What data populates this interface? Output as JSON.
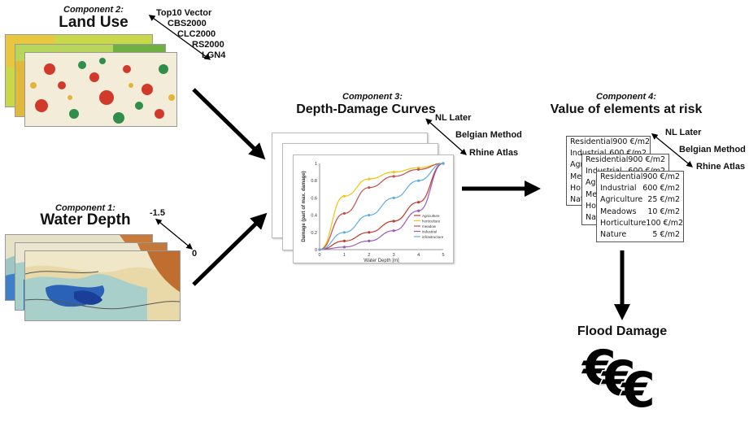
{
  "land_use": {
    "component_label": "Component 2:",
    "title": "Land Use",
    "sources": [
      "Top10 Vector",
      "CBS2000",
      "CLC2000",
      "RS2000",
      "LGN4"
    ]
  },
  "water_depth": {
    "component_label": "Component 1:",
    "title": "Water Depth",
    "range_top": "-1.5",
    "range_bottom": "0"
  },
  "depth_damage": {
    "component_label": "Component 3:",
    "title": "Depth-Damage Curves",
    "sources": [
      "NL Later",
      "Belgian Method",
      "Rhine Atlas"
    ]
  },
  "value_elements": {
    "component_label": "Component 4:",
    "title": "Value of elements at risk",
    "sources": [
      "NL Later",
      "Belgian Method",
      "Rhine Atlas"
    ],
    "rows": [
      {
        "label": "Residential",
        "value": "900 €/m2"
      },
      {
        "label": "Industrial",
        "value": "600 €/m2"
      },
      {
        "label": "Agriculture",
        "value": "25 €/m2"
      },
      {
        "label": "Meadows",
        "value": "10 €/m2"
      },
      {
        "label": "Horticulture",
        "value": "100 €/m2"
      },
      {
        "label": "Nature",
        "value": "5 €/m2"
      }
    ],
    "back_rows_1": [
      {
        "label": "Residential",
        "value": "900 €/m2"
      },
      {
        "label": "Industrial",
        "value": "600 €/m2"
      },
      {
        "label": "Agri",
        "value": ""
      },
      {
        "label": "Mea",
        "value": ""
      },
      {
        "label": "Hor",
        "value": ""
      },
      {
        "label": "Natu",
        "value": ""
      }
    ],
    "back_rows_2": [
      {
        "label": "Residential",
        "value": "900 €/m2"
      },
      {
        "label": "Industrial",
        "value": "600 €/m2"
      },
      {
        "label": "Agri",
        "value": ""
      },
      {
        "label": "Mea",
        "value": ""
      },
      {
        "label": "Hor",
        "value": ""
      },
      {
        "label": "Natu",
        "value": ""
      }
    ]
  },
  "flood_damage": {
    "title": "Flood Damage",
    "symbol": "€"
  },
  "chart_data": {
    "type": "line",
    "xlabel": "Water Depth [m]",
    "ylabel": "Damage (part of max. damage)",
    "xlim": [
      0,
      5
    ],
    "ylim": [
      0,
      1
    ],
    "xticks": [
      "0",
      "1",
      "2",
      "3",
      "4",
      "5"
    ],
    "yticks": [
      "0",
      "0.2",
      "0.4",
      "0.6",
      "0.8",
      "1"
    ],
    "x": [
      0,
      1,
      2,
      3,
      4,
      5
    ],
    "series": [
      {
        "name": "Agriculture",
        "color": "#c0392b",
        "values": [
          0,
          0.1,
          0.2,
          0.33,
          0.55,
          1.0
        ]
      },
      {
        "name": "horticulture",
        "color": "#f1c40f",
        "values": [
          0,
          0.62,
          0.82,
          0.9,
          0.95,
          1.0
        ]
      },
      {
        "name": "meadow",
        "color": "#c0504d",
        "values": [
          0,
          0.42,
          0.72,
          0.85,
          0.93,
          1.0
        ]
      },
      {
        "name": "industrial",
        "color": "#9b59b6",
        "values": [
          0,
          0.03,
          0.1,
          0.22,
          0.45,
          1.0
        ]
      },
      {
        "name": "infrastructure",
        "color": "#5dade2",
        "values": [
          0,
          0.2,
          0.4,
          0.6,
          0.8,
          1.0
        ]
      }
    ],
    "legend": "bottom-right",
    "grid": false
  }
}
